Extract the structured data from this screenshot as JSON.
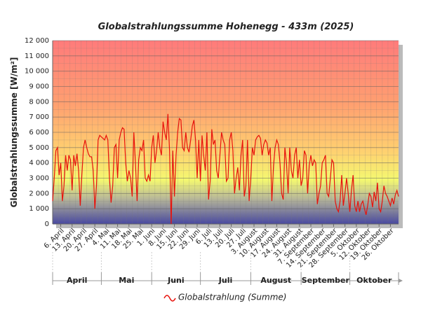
{
  "chart_data": {
    "type": "line",
    "title": "Globalstrahlungssumme Hohenegg - 433m (2025)",
    "y_label": "Globalstrahlungssumme [W/m²]",
    "categories": [
      null,
      null,
      null,
      null,
      null,
      "6. April",
      null,
      null,
      null,
      null,
      null,
      null,
      "13. April",
      null,
      null,
      null,
      null,
      null,
      null,
      "20. April",
      null,
      null,
      null,
      null,
      null,
      null,
      "27. April",
      null,
      null,
      null,
      null,
      null,
      null,
      "4. Mai",
      null,
      null,
      null,
      null,
      null,
      null,
      "11. Mai",
      null,
      null,
      null,
      null,
      null,
      null,
      "18. Mai",
      null,
      null,
      null,
      null,
      null,
      null,
      "25. Mai",
      null,
      null,
      null,
      null,
      null,
      null,
      "1. Juni",
      null,
      null,
      null,
      null,
      null,
      null,
      "8. Juni",
      null,
      null,
      null,
      null,
      null,
      null,
      "15. Juni",
      null,
      null,
      null,
      null,
      null,
      null,
      "22. Juni",
      null,
      null,
      null,
      null,
      null,
      null,
      "29. Juni",
      null,
      null,
      null,
      null,
      null,
      null,
      "6. Juli",
      null,
      null,
      null,
      null,
      null,
      null,
      "13. Juli",
      null,
      null,
      null,
      null,
      null,
      null,
      "20. Juli",
      null,
      null,
      null,
      null,
      null,
      null,
      "27. Juli",
      null,
      null,
      null,
      null,
      null,
      null,
      "3. August",
      null,
      null,
      null,
      null,
      null,
      null,
      "10. August",
      null,
      null,
      null,
      null,
      null,
      null,
      "17. August",
      null,
      null,
      null,
      null,
      null,
      null,
      "24. August",
      null,
      null,
      null,
      null,
      null,
      null,
      "31. August",
      null,
      null,
      null,
      null,
      null,
      null,
      "7. September",
      null,
      null,
      null,
      null,
      null,
      null,
      "14. September",
      null,
      null,
      null,
      null,
      null,
      null,
      "21. September",
      null,
      null,
      null,
      null,
      null,
      null,
      "28. September",
      null,
      null,
      null,
      null,
      null,
      null,
      "5. Oktober",
      null,
      null,
      null,
      null,
      null,
      null,
      "12. Oktober",
      null,
      null,
      null,
      null,
      null,
      null,
      "19. Oktober",
      null,
      null,
      null,
      null,
      null,
      null,
      "26. Oktober",
      null,
      null,
      null,
      null,
      null
    ],
    "months": [
      "April",
      "Mai",
      "Juni",
      "Juli",
      "August",
      "September",
      "Oktober"
    ],
    "series": [
      {
        "name": "Globalstrahlung (Summe)",
        "color": "#e8120c",
        "values": [
          1500,
          3000,
          4800,
          5000,
          3200,
          4000,
          1500,
          2500,
          4500,
          3500,
          4500,
          4200,
          2200,
          4500,
          3800,
          4600,
          3500,
          1200,
          3200,
          5000,
          5500,
          5000,
          4600,
          4400,
          4400,
          3500,
          1000,
          2500,
          5500,
          5800,
          5700,
          5600,
          5500,
          5800,
          5500,
          3000,
          1400,
          2500,
          5000,
          5200,
          3000,
          5500,
          6000,
          6300,
          6200,
          4000,
          2800,
          3500,
          3000,
          1800,
          6000,
          4000,
          1500,
          4200,
          5000,
          4800,
          5500,
          3000,
          2800,
          3200,
          2800,
          5000,
          5800,
          4000,
          4800,
          6000,
          5000,
          4500,
          6700,
          6000,
          5500,
          7200,
          4800,
          0,
          4800,
          1800,
          4500,
          6000,
          6900,
          6800,
          5000,
          4800,
          6000,
          5000,
          4700,
          5500,
          6400,
          6800,
          5500,
          3000,
          5500,
          2800,
          5800,
          4500,
          3500,
          6000,
          1600,
          2800,
          6200,
          5200,
          5500,
          3500,
          3000,
          4500,
          6000,
          5500,
          5200,
          2800,
          3000,
          5500,
          6000,
          4800,
          2000,
          3000,
          3700,
          2200,
          4500,
          5500,
          1800,
          2500,
          5500,
          1500,
          3000,
          5000,
          4500,
          5500,
          5700,
          5800,
          5600,
          4500,
          5200,
          5500,
          5300,
          4500,
          5000,
          1500,
          3800,
          5000,
          5500,
          5200,
          4000,
          2000,
          1600,
          5000,
          4000,
          2000,
          5000,
          3500,
          3000,
          4500,
          5000,
          3000,
          4200,
          2500,
          3000,
          4800,
          4500,
          2000,
          3800,
          4500,
          3800,
          4200,
          4000,
          1300,
          2000,
          2500,
          4000,
          4200,
          4500,
          2000,
          1800,
          3000,
          4200,
          4000,
          1500,
          1000,
          800,
          1500,
          3200,
          1200,
          2000,
          3000,
          2000,
          800,
          2200,
          3200,
          1200,
          800,
          1500,
          800,
          1300,
          1500,
          1000,
          600,
          1200,
          2000,
          1800,
          1100,
          2100,
          1500,
          2700,
          1000,
          800,
          1500,
          2500,
          2000,
          1800,
          1500,
          1200,
          1700,
          1300,
          1900,
          2200,
          1800
        ]
      }
    ],
    "ylim": [
      0,
      12000
    ],
    "yticks": [
      0,
      {
        "value": 1000,
        "label": "1 000"
      },
      {
        "value": 2000,
        "label": "2 000"
      },
      {
        "value": 3000,
        "label": "3 000"
      },
      {
        "value": 4000,
        "label": "4 000"
      },
      {
        "value": 5000,
        "label": "5 000"
      },
      {
        "value": 6000,
        "label": "6 000"
      },
      {
        "value": 7000,
        "label": "7 000"
      },
      {
        "value": 8000,
        "label": "8 000"
      },
      {
        "value": 9000,
        "label": "9 000"
      },
      {
        "value": 10000,
        "label": "10 000"
      },
      {
        "value": 11000,
        "label": "11 000"
      },
      {
        "value": 12000,
        "label": "12 000"
      }
    ],
    "grid": true
  }
}
